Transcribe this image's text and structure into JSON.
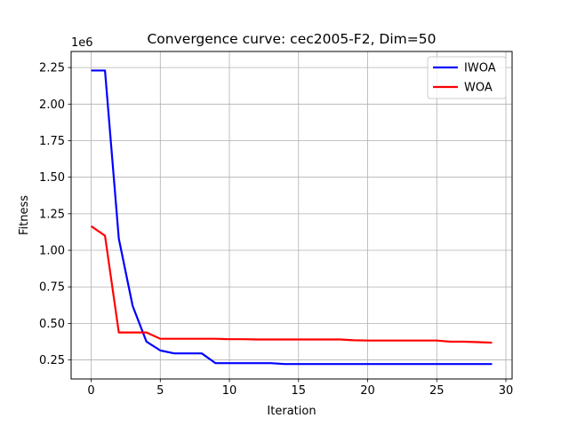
{
  "chart_data": {
    "type": "line",
    "title": "Convergence curve:  cec2005-F2, Dim=50",
    "xlabel": "Iteration",
    "ylabel": "Fitness",
    "y_offset_label": "1e6",
    "y_scale": 1000000,
    "xlim": [
      -1.45,
      30.45
    ],
    "ylim": [
      120000,
      2360000
    ],
    "x_ticks": [
      0,
      5,
      10,
      15,
      20,
      25,
      30
    ],
    "y_ticks": [
      250000,
      500000,
      750000,
      1000000,
      1250000,
      1500000,
      1750000,
      2000000,
      2250000
    ],
    "y_tick_labels": [
      "0.25",
      "0.50",
      "0.75",
      "1.00",
      "1.25",
      "1.50",
      "1.75",
      "2.00",
      "2.25"
    ],
    "grid": true,
    "legend_position": "top-right",
    "x": [
      0,
      1,
      2,
      3,
      4,
      5,
      6,
      7,
      8,
      9,
      10,
      11,
      12,
      13,
      14,
      15,
      16,
      17,
      18,
      19,
      20,
      21,
      22,
      23,
      24,
      25,
      26,
      27,
      28,
      29
    ],
    "series": [
      {
        "name": "IWOA",
        "color": "#0000ff",
        "values": [
          2230000,
          2230000,
          1080000,
          620000,
          375000,
          315000,
          295000,
          295000,
          295000,
          228000,
          228000,
          228000,
          228000,
          228000,
          222000,
          222000,
          222000,
          222000,
          222000,
          222000,
          222000,
          222000,
          222000,
          222000,
          222000,
          222000,
          222000,
          222000,
          222000,
          222000
        ]
      },
      {
        "name": "WOA",
        "color": "#ff0000",
        "values": [
          1165000,
          1100000,
          438000,
          438000,
          438000,
          395000,
          395000,
          395000,
          395000,
          395000,
          392000,
          392000,
          390000,
          390000,
          390000,
          390000,
          390000,
          390000,
          390000,
          385000,
          383000,
          383000,
          383000,
          383000,
          383000,
          383000,
          375000,
          375000,
          372000,
          368000
        ]
      }
    ]
  }
}
